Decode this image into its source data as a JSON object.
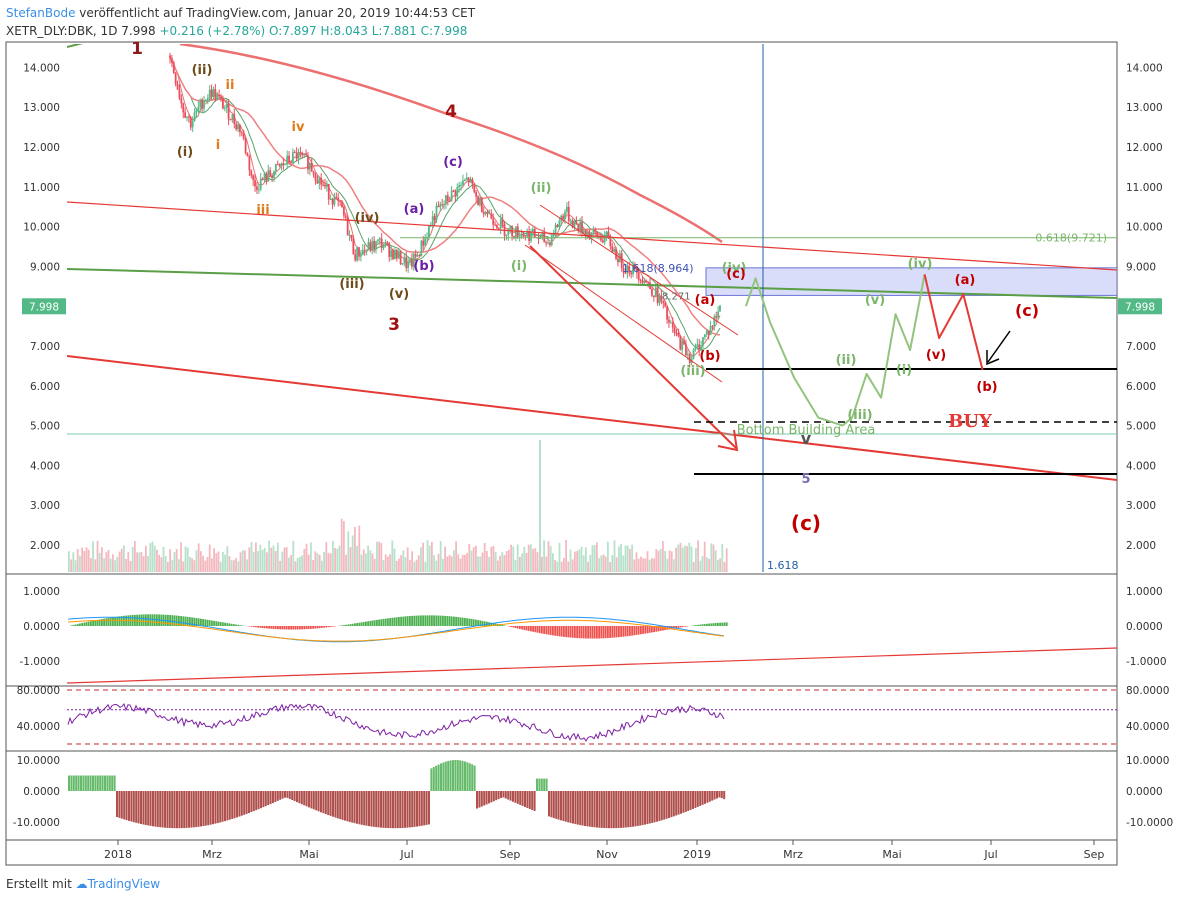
{
  "header": {
    "author": "StefanBode",
    "published": "veröffentlicht auf TradingView.com, Januar 20, 2019 10:44:53 CET",
    "symbol": "XETR_DLY:DBK, 1D",
    "last": "7.998",
    "change": "+0.216 (+2.78%)",
    "ohlc": "O:7.897 H:8.043 L:7.881 C:7.998"
  },
  "footer": {
    "created": "Erstellt mit",
    "brand": "TradingView"
  },
  "chart_data": {
    "type": "candlestick",
    "price_axis": {
      "ylim": [
        1.3,
        14.6
      ],
      "ticks": [
        "14.000",
        "13.000",
        "12.000",
        "11.000",
        "10.000",
        "9.000",
        "7.998",
        "7.000",
        "6.000",
        "5.000",
        "4.000",
        "3.000",
        "2.000"
      ],
      "last_value": "7.998",
      "last_color": "#53b987"
    },
    "x_ticks": [
      "2018",
      "Mrz",
      "Mai",
      "Jul",
      "Sep",
      "Nov",
      "2019",
      "Mrz",
      "Mai",
      "Jul",
      "Sep"
    ],
    "price_series": [
      [
        0,
        14.3
      ],
      [
        0.3,
        13.0
      ],
      [
        0.5,
        12.6
      ],
      [
        0.8,
        13.2
      ],
      [
        1.0,
        13.4
      ],
      [
        1.3,
        13.0
      ],
      [
        1.7,
        12.4
      ],
      [
        2.0,
        11.0
      ],
      [
        2.5,
        11.4
      ],
      [
        3.0,
        11.8
      ],
      [
        3.3,
        11.6
      ],
      [
        3.6,
        11.1
      ],
      [
        4.1,
        10.4
      ],
      [
        4.4,
        9.3
      ],
      [
        5.0,
        9.6
      ],
      [
        5.7,
        9.0
      ],
      [
        5.9,
        9.3
      ],
      [
        6.3,
        10.3
      ],
      [
        6.7,
        10.8
      ],
      [
        7.1,
        11.2
      ],
      [
        7.3,
        10.7
      ],
      [
        7.6,
        10.3
      ],
      [
        8.0,
        9.9
      ],
      [
        8.6,
        9.8
      ],
      [
        9.0,
        9.6
      ],
      [
        9.4,
        10.4
      ],
      [
        9.6,
        10.1
      ],
      [
        10.0,
        9.8
      ],
      [
        10.4,
        9.7
      ],
      [
        10.8,
        9.0
      ],
      [
        11.1,
        8.9
      ],
      [
        11.5,
        8.4
      ],
      [
        11.7,
        8.1
      ],
      [
        11.9,
        7.5
      ],
      [
        12.2,
        7.0
      ],
      [
        12.4,
        6.7
      ],
      [
        12.7,
        7.2
      ],
      [
        12.9,
        7.5
      ],
      [
        13.1,
        7.998
      ]
    ],
    "forecast_path": [
      [
        13.0,
        8.0
      ],
      [
        13.2,
        8.7
      ],
      [
        13.5,
        7.6
      ],
      [
        14.0,
        6.2
      ],
      [
        14.5,
        5.2
      ],
      [
        15.0,
        5.0
      ],
      [
        15.2,
        5.2
      ],
      [
        15.5,
        6.3
      ],
      [
        15.8,
        5.7
      ],
      [
        16.1,
        7.8
      ],
      [
        16.4,
        6.9
      ],
      [
        16.7,
        8.8
      ]
    ],
    "forecast_path_red": [
      [
        16.7,
        8.8
      ],
      [
        17.0,
        7.2
      ],
      [
        17.5,
        8.3
      ],
      [
        17.9,
        6.4
      ]
    ],
    "levels": [
      {
        "label": "0.618(9.721)",
        "value": 9.721
      },
      {
        "label": "1.618(8.964)",
        "value": 8.964
      },
      {
        "label": "8.271",
        "value": 8.271
      },
      {
        "label": "1.618",
        "value": null
      }
    ],
    "annotations": [
      "1",
      "(ii)",
      "ii",
      "(i)",
      "i",
      "iv",
      "iii",
      "4",
      "(c)",
      "(ii)",
      "(a)",
      "(iv)",
      "(b)",
      "(i)",
      "(iii)",
      "(v)",
      "3",
      "(iv)",
      "(c)",
      "(a)",
      "(b)",
      "(iii)",
      "(v)",
      "(iii)",
      "(ii)",
      "(i)",
      "(iv)",
      "(v)",
      "(a)",
      "(b)",
      "(c)",
      "BUY",
      "Bottom Building Area",
      "v",
      "5",
      "(c)",
      "C"
    ],
    "macd_axis": {
      "ylim": [
        -1.7,
        1.3
      ],
      "ticks": [
        "1.0000",
        "0.0000",
        "-1.0000"
      ]
    },
    "rsi_axis": {
      "ylim": [
        10,
        90
      ],
      "ticks": [
        "80.0000",
        "40.0000"
      ]
    },
    "osc_axis": {
      "ylim": [
        -16,
        14
      ],
      "ticks": [
        "10.0000",
        "0.0000",
        "-10.0000"
      ]
    }
  },
  "colors": {
    "up": "#53b987",
    "down": "#eb4d5c",
    "wave_red": "#cc0000",
    "wave_green": "#7ab56a",
    "rsi": "#7b1fa2"
  }
}
